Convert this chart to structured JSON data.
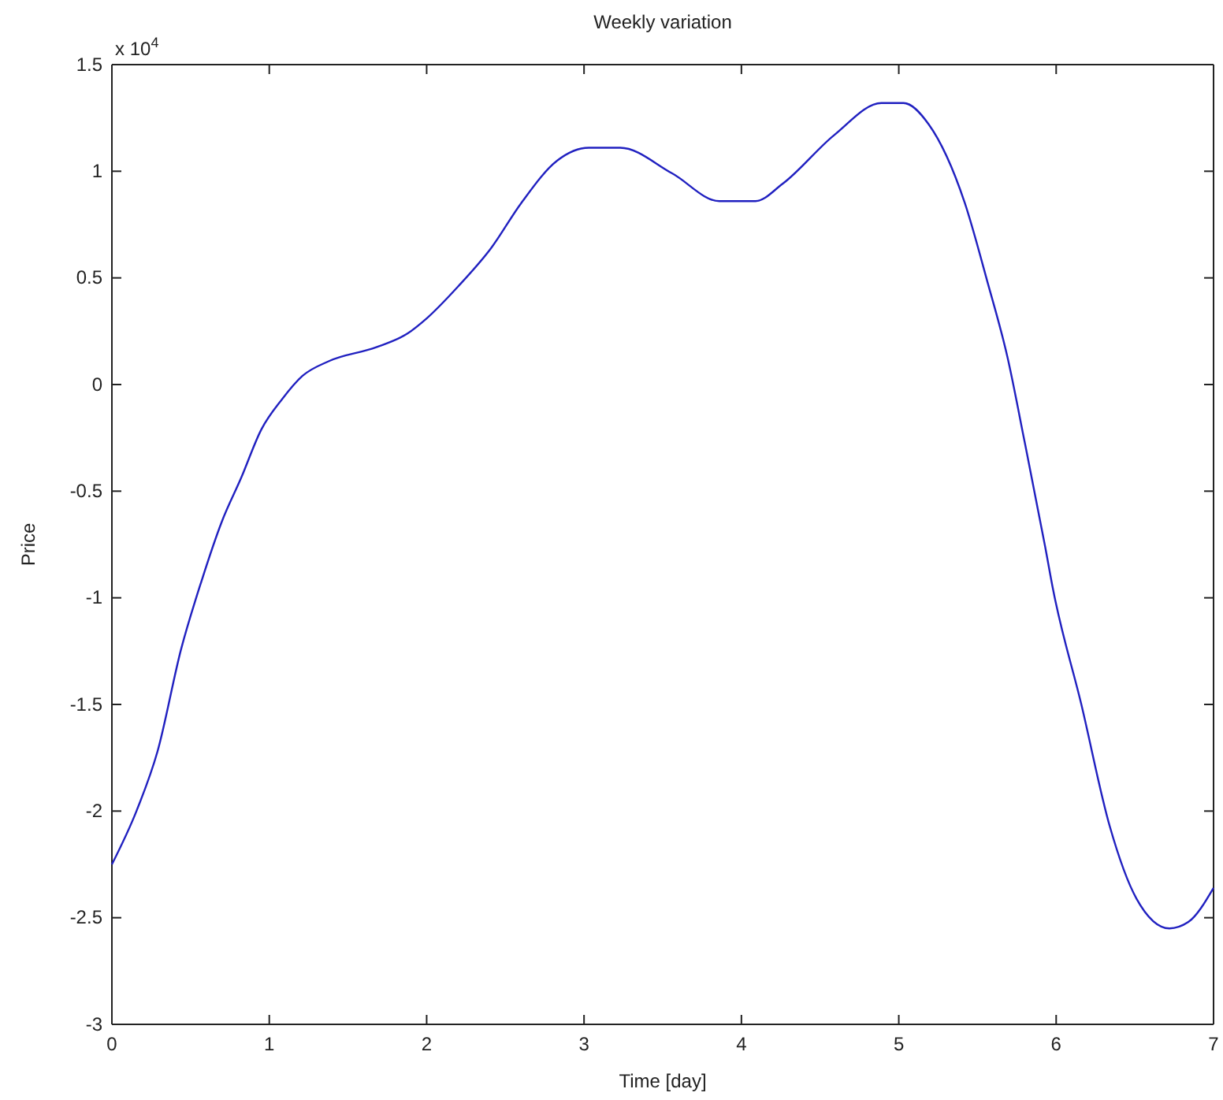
{
  "chart_data": {
    "type": "line",
    "title": "Weekly variation",
    "xlabel": "Time [day]",
    "ylabel": "Price",
    "annotations": [
      "x 10$^{4}$"
    ],
    "x": [
      0,
      0.156,
      0.29,
      0.44,
      0.57,
      0.7,
      0.82,
      0.95,
      1.08,
      1.21,
      1.38,
      1.68,
      1.88,
      2.0,
      2.2,
      2.41,
      2.6,
      2.83,
      3.03,
      3.23,
      3.56,
      3.86,
      4.09,
      4.26,
      4.59,
      4.89,
      5.03,
      5.19,
      5.42,
      5.56,
      5.69,
      5.8,
      5.93,
      5.98,
      6.16,
      6.34,
      6.51,
      6.72,
      6.84,
      7.0
    ],
    "series": [
      {
        "color": "#2020c0",
        "values": [
          -2.25,
          -2.0,
          -1.72,
          -1.24,
          -0.92,
          -0.64,
          -0.44,
          -0.21,
          -0.07,
          0.04,
          0.11,
          0.175,
          0.24,
          0.31,
          0.46,
          0.64,
          0.85,
          1.05,
          1.11,
          1.11,
          0.99,
          0.86,
          0.86,
          0.94,
          1.17,
          1.32,
          1.32,
          1.22,
          0.85,
          0.49,
          0.13,
          -0.27,
          -0.76,
          -0.96,
          -1.5,
          -2.07,
          -2.41,
          -2.55,
          -2.52,
          -2.36
        ]
      }
    ],
    "xlim": [
      0,
      7
    ],
    "xticks": [
      0,
      1,
      2,
      3,
      4,
      5,
      6,
      7
    ],
    "ylim": [
      -3,
      1.5
    ],
    "yticks": [
      -3,
      -2.5,
      -2,
      -1.5,
      -1,
      -0.5,
      0,
      0.5,
      1,
      1.5
    ],
    "grid": false,
    "marker": "none",
    "line_style": "solid"
  }
}
